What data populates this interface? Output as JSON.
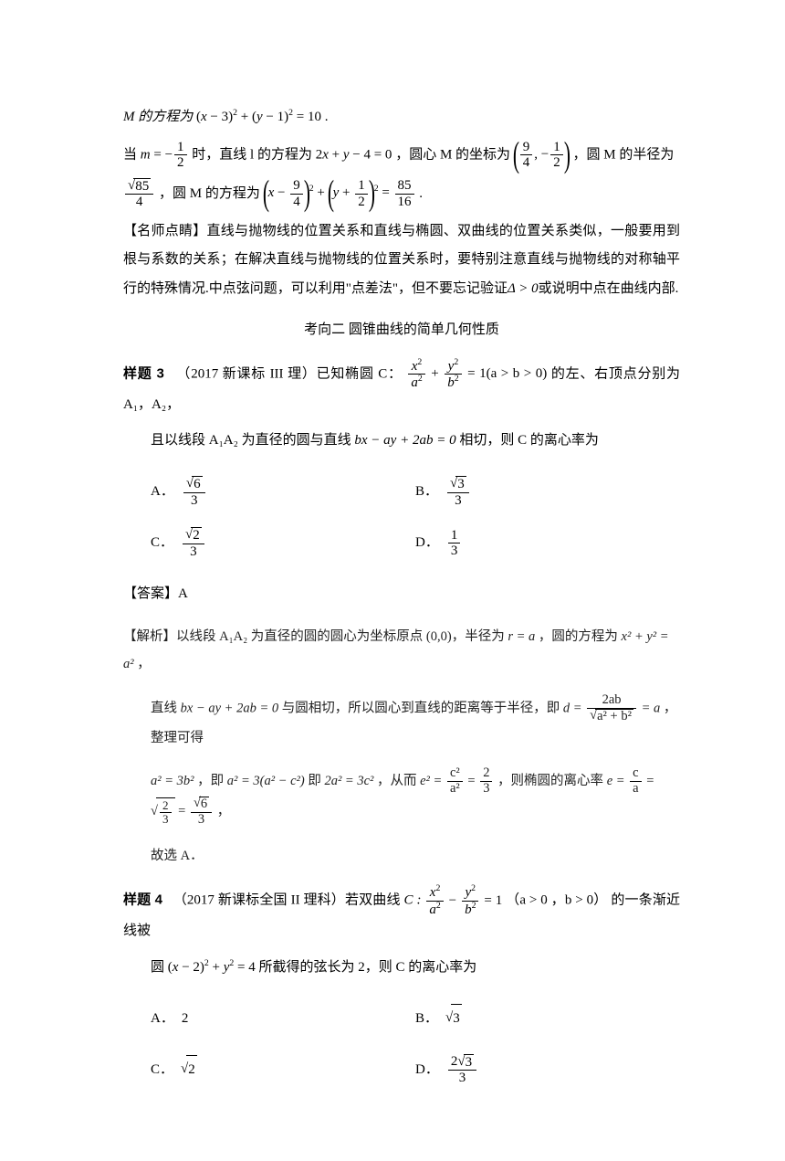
{
  "intro": {
    "line1_a": "M 的方程为",
    "line1_eq": "(x − 3)² + (y − 1)² = 10 .",
    "line2_a": "当",
    "line2_m_eq": "m = −",
    "line2_b": "时，直线 l 的方程为",
    "line2_line_eq": "2x + y − 4 = 0",
    "line2_c": "，圆心 M 的坐标为",
    "line2_d": "，圆 M 的半径为",
    "line3_a": "，圆 M   的方程为",
    "line3_eq_rhs": " .",
    "frac_half_num": "1",
    "frac_half_den": "2",
    "center_x_num": "9",
    "center_x_den": "4",
    "center_y_num": "1",
    "center_y_den": "2",
    "radius_num": "85",
    "radius_den": "4",
    "radius_sqrt": "√",
    "circle_num": "9",
    "circle_den": "4",
    "circle_y_num": "1",
    "circle_y_den": "2",
    "rhs_num": "85",
    "rhs_den": "16"
  },
  "commentary": {
    "label": "【名师点睛】",
    "text": "直线与抛物线的位置关系和直线与椭圆、双曲线的位置关系类似，一般要用到根与系数的关系；在解决直线与抛物线的位置关系时，要特别注意直线与抛物线的对称轴平行的特殊情况.中点弦问题，可以利用\"点差法\"，但不要忘记验证",
    "delta": "Δ > 0",
    "text2": "或说明中点在曲线内部."
  },
  "section_heading": "考向二   圆锥曲线的简单几何性质",
  "problem3": {
    "label": "样题 3",
    "source": "（2017 新课标 III 理）",
    "text_a": "已知椭圆 C：",
    "eq_cond": "= 1(a > b > 0)",
    "text_b": " 的左、右顶点分别为 A₁，A₂，",
    "text_c": "且以线段 A₁A₂ 为直径的圆与直线",
    "tangent_eq": "bx − ay + 2ab = 0",
    "text_d": "相切，则 C 的离心率为",
    "options": {
      "A_num": "6",
      "A_den": "3",
      "B_num": "3",
      "B_den": "3",
      "C_num": "2",
      "C_den": "3",
      "D_num": "1",
      "D_den": "3"
    }
  },
  "answer3": {
    "label": "【答案】",
    "value": "A"
  },
  "analysis3": {
    "label": "【解析】",
    "line1a": "以线段 A₁A₂ 为直径的圆的圆心为坐标原点 (0,0)，半径为",
    "r_eq": "r = a",
    "line1b": "，圆的方程为",
    "circle_eq": "x² + y² = a²",
    "line1c": "，",
    "line2a": "直线",
    "tangent": "bx − ay + 2ab = 0",
    "line2b": "与圆相切，所以圆心到直线的距离等于半径，即",
    "d_eq_a": "d =",
    "d_num": "2ab",
    "d_den": "a² + b²",
    "d_eq_b": "= a",
    "line2c": "，整理可得",
    "line3a": "a² = 3b²",
    "line3b": "，即",
    "line3c": "a² = 3(a² − c²)",
    "line3d": "即",
    "line3e": "2a² = 3c²",
    "line3f": "，从而",
    "e2_eq": "e² =",
    "e2_num": "c²",
    "e2_den": "a²",
    "e2_eq2": "=",
    "e2_val_num": "2",
    "e2_val_den": "3",
    "line3g": "，则椭圆的离心率",
    "e_eq": "e =",
    "e_num": "c",
    "e_den": "a",
    "e_eq2": "=",
    "e_final_num": "6",
    "e_final_den": "3",
    "line3h": "，",
    "line4": "故选 A．"
  },
  "problem4": {
    "label": "样题 4",
    "source": "（2017 新课标全国 II 理科）",
    "text_a": "若双曲线",
    "C_label": "C :",
    "eq_cond": "= 1",
    "cond2": "（a > 0 ，b > 0）",
    "text_b": "的一条渐近线被",
    "text_c": "圆",
    "circle_eq": "(x − 2)² + y² = 4",
    "text_d": "所截得的弦长为 2，则 C 的离心率为",
    "options": {
      "A": "2",
      "B_val": "3",
      "C_val": "2",
      "D_num": "3",
      "D_coef": "2",
      "D_den": "3"
    }
  },
  "colors": {
    "text": "#000000",
    "bg": "#ffffff"
  }
}
